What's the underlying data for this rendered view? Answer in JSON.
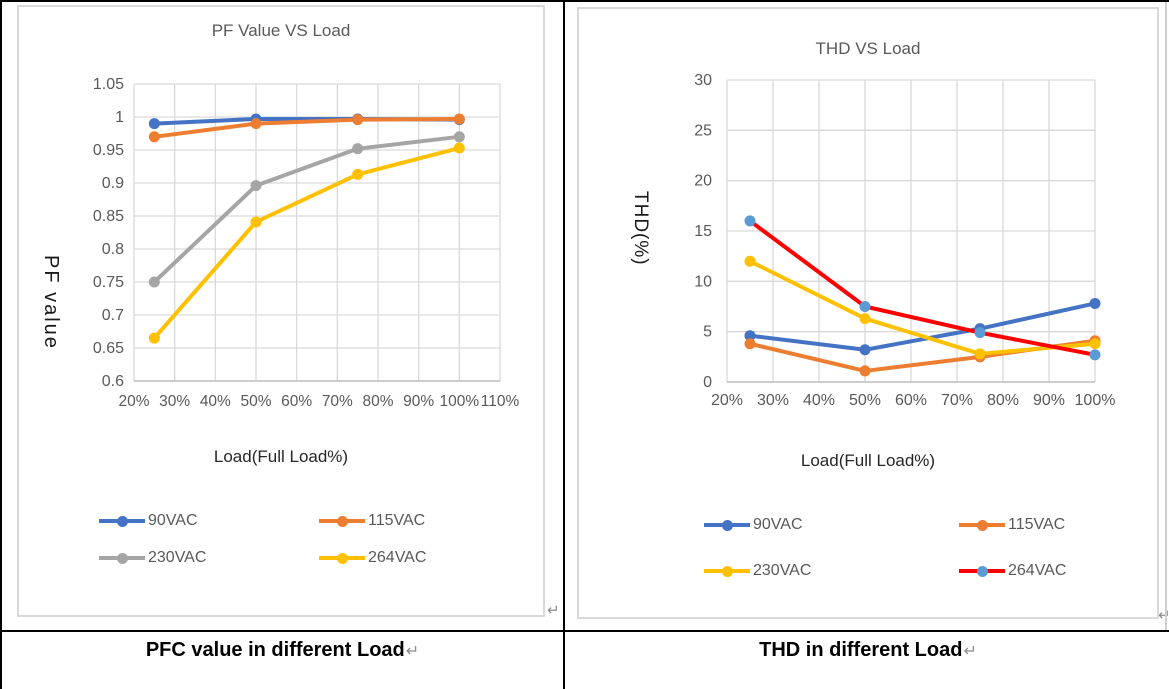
{
  "marks": {
    "return_symbol": "↵"
  },
  "panels": [
    {
      "caption": "PFC value in different Load"
    },
    {
      "caption": "THD in different Load"
    }
  ],
  "chart_data": [
    {
      "type": "line",
      "title": "PF Value VS Load",
      "xlabel": "Load(Full Load%)",
      "ylabel": "PF value",
      "x": [
        25,
        50,
        75,
        100
      ],
      "x_axis": {
        "min": 20,
        "max": 110,
        "tick_labels": [
          "20%",
          "30%",
          "40%",
          "50%",
          "60%",
          "70%",
          "80%",
          "90%",
          "100%",
          "110%"
        ]
      },
      "y_axis": {
        "min": 0.6,
        "max": 1.05,
        "tick_labels": [
          "1.05",
          "1",
          "0.95",
          "0.9",
          "0.85",
          "0.8",
          "0.75",
          "0.7",
          "0.65",
          "0.6"
        ]
      },
      "grid": true,
      "grid_color": "#D9D9D9",
      "axis_line_color": "#BFBFBF",
      "legend_position": "bottom",
      "series": [
        {
          "name": "90VAC",
          "color": "#4472C4",
          "values": [
            0.99,
            0.997,
            0.997,
            0.996
          ]
        },
        {
          "name": "115VAC",
          "color": "#ED7D31",
          "values": [
            0.97,
            0.99,
            0.996,
            0.997
          ]
        },
        {
          "name": "230VAC",
          "color": "#A5A5A5",
          "values": [
            0.75,
            0.896,
            0.952,
            0.97
          ]
        },
        {
          "name": "264VAC",
          "color": "#FFC000",
          "values": [
            0.665,
            0.841,
            0.913,
            0.953
          ]
        }
      ]
    },
    {
      "type": "line",
      "title": "THD VS Load",
      "xlabel": "Load(Full Load%)",
      "ylabel": "THD(%)",
      "x": [
        25,
        50,
        75,
        100
      ],
      "x_axis": {
        "min": 20,
        "max": 100,
        "tick_labels": [
          "20%",
          "30%",
          "40%",
          "50%",
          "60%",
          "70%",
          "80%",
          "90%",
          "100%"
        ]
      },
      "y_axis": {
        "min": 0,
        "max": 30,
        "tick_labels": [
          "30",
          "25",
          "20",
          "15",
          "10",
          "5",
          "0"
        ]
      },
      "grid": true,
      "grid_color": "#D9D9D9",
      "axis_line_color": "#BFBFBF",
      "legend_position": "bottom",
      "series": [
        {
          "name": "90VAC",
          "color": "#4472C4",
          "values": [
            4.6,
            3.2,
            5.3,
            7.8
          ]
        },
        {
          "name": "115VAC",
          "color": "#ED7D31",
          "values": [
            3.8,
            1.1,
            2.5,
            4.1
          ]
        },
        {
          "name": "230VAC",
          "color": "#FFC000",
          "values": [
            12,
            6.3,
            2.8,
            3.8
          ]
        },
        {
          "name": "264VAC",
          "color": "#FF0000",
          "marker_color": "#5B9BD5",
          "values": [
            16,
            7.5,
            4.9,
            2.7
          ]
        }
      ]
    }
  ]
}
